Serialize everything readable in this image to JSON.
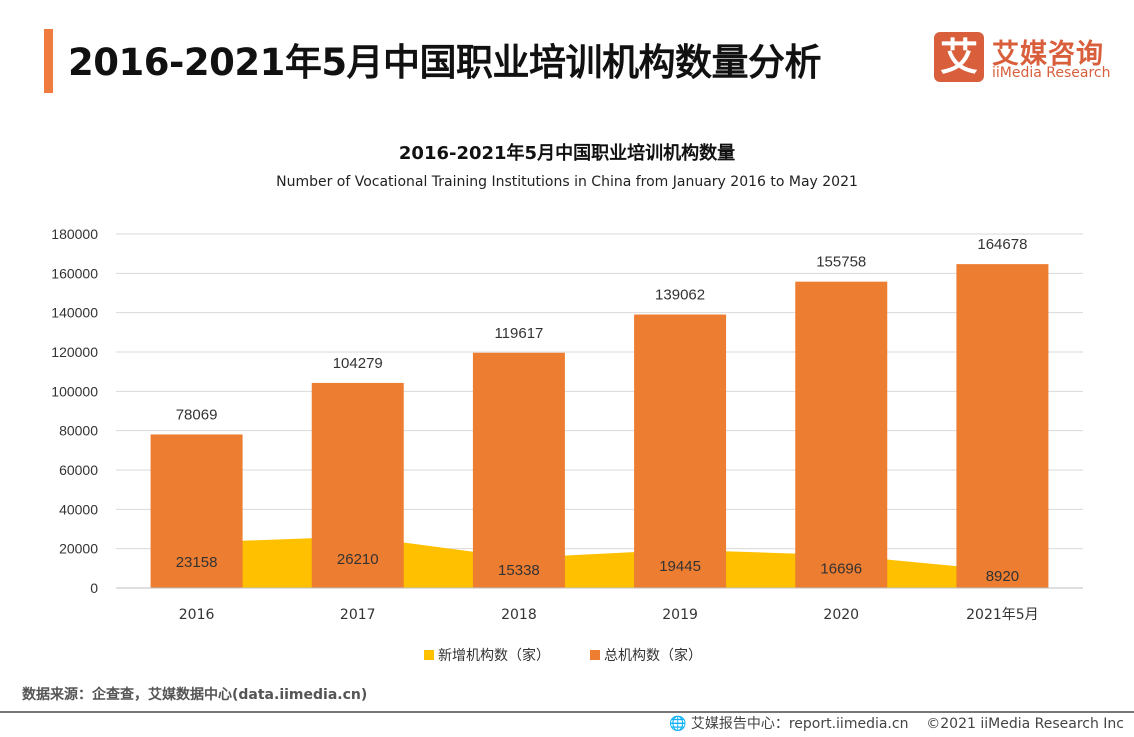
{
  "header": {
    "title": "2016-2021年5月中国职业培训机构数量分析",
    "logo_cn": "艾媒咨询",
    "logo_en": "iiMedia Research",
    "logo_glyph": "艾"
  },
  "chart_data": {
    "type": "bar",
    "title": "2016-2021年5月中国职业培训机构数量",
    "subtitle": "Number of Vocational Training Institutions in China from January 2016 to May 2021",
    "categories": [
      "2016",
      "2017",
      "2018",
      "2019",
      "2020",
      "2021年5月"
    ],
    "ylim": [
      0,
      180000
    ],
    "yticks": [
      0,
      20000,
      40000,
      60000,
      80000,
      100000,
      120000,
      140000,
      160000,
      180000
    ],
    "grid": true,
    "legend_position": "bottom",
    "series": [
      {
        "name": "新增机构数（家）",
        "type": "area",
        "color": "#ffc000",
        "values": [
          23158,
          26210,
          15338,
          19445,
          16696,
          8920
        ]
      },
      {
        "name": "总机构数（家）",
        "type": "bar",
        "color": "#ed7d31",
        "values": [
          78069,
          104279,
          119617,
          139062,
          155758,
          164678
        ]
      }
    ]
  },
  "footer": {
    "source": "数据来源：企查查，艾媒数据中心(data.iimedia.cn)",
    "report": "艾媒报告中心：report.iimedia.cn",
    "copyright": "©2021  iiMedia Research  Inc",
    "icon": "globe-cursor-icon"
  }
}
